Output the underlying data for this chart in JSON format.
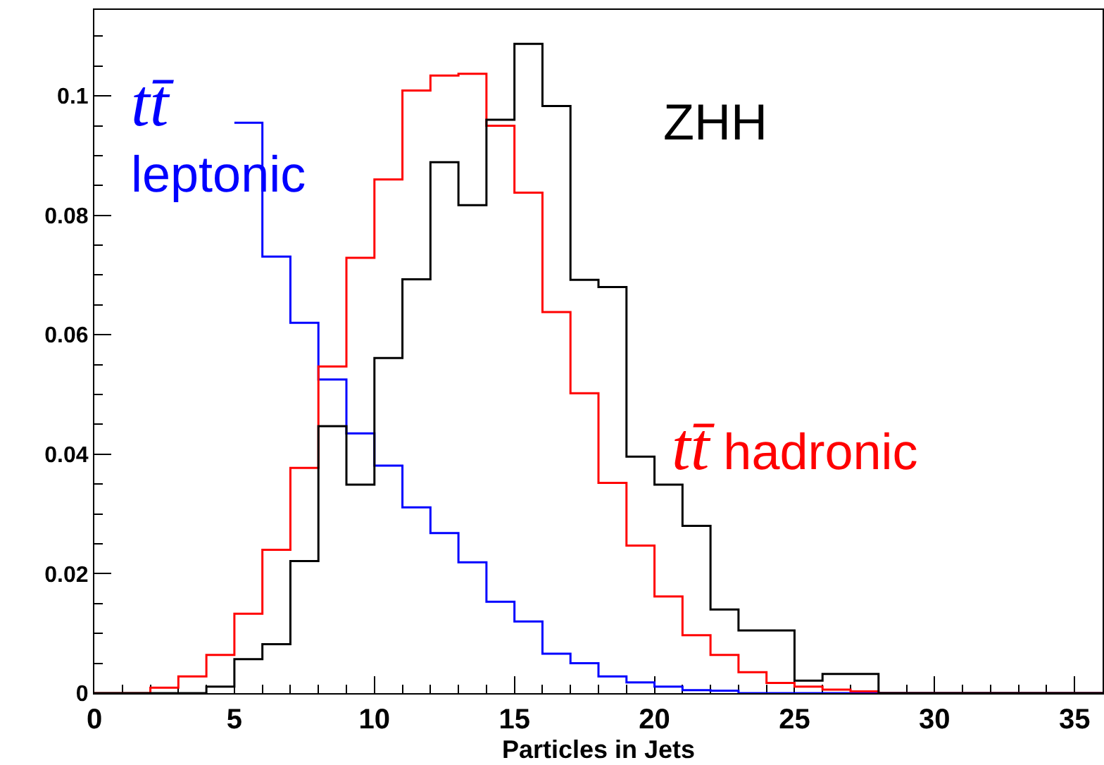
{
  "chart_data": {
    "type": "histogram",
    "xlabel": "Particles in Jets",
    "bins": [
      0,
      1,
      2,
      3,
      4,
      5,
      6,
      7,
      8,
      9,
      10,
      11,
      12,
      13,
      14,
      15,
      16,
      17,
      18,
      19,
      20,
      21,
      22,
      23,
      24,
      25,
      26,
      27,
      28,
      29,
      30,
      31,
      32,
      33,
      34,
      35,
      36
    ],
    "series": [
      {
        "name": "tt̄ leptonic",
        "color": "#0000ff",
        "bins": [
          5,
          6,
          7,
          8,
          9,
          10,
          11,
          12,
          13,
          14,
          15,
          16,
          17,
          18,
          19,
          20,
          21,
          22,
          23,
          24,
          25,
          26,
          27,
          28,
          29,
          30,
          31,
          32,
          33,
          34,
          35,
          36
        ],
        "values": [
          0.0955,
          0.0731,
          0.062,
          0.0525,
          0.0435,
          0.0381,
          0.0311,
          0.0268,
          0.0219,
          0.0153,
          0.012,
          0.0066,
          0.005,
          0.0028,
          0.0018,
          0.0011,
          0.0005,
          0.0004,
          0,
          0,
          0,
          0,
          0,
          0,
          0,
          0,
          0,
          0,
          0,
          0,
          0
        ]
      },
      {
        "name": "tt̄ hadronic",
        "color": "#ff0000",
        "values": [
          0,
          0,
          0.0009,
          0.0028,
          0.0064,
          0.0133,
          0.024,
          0.0377,
          0.0547,
          0.0729,
          0.086,
          0.1009,
          0.1034,
          0.1037,
          0.095,
          0.0838,
          0.0638,
          0.0502,
          0.0352,
          0.0247,
          0.0162,
          0.0097,
          0.0064,
          0.0035,
          0.0017,
          0.0011,
          0.0006,
          0.0003,
          0,
          0,
          0,
          0,
          0,
          0,
          0,
          0
        ]
      },
      {
        "name": "ZHH",
        "color": "#000000",
        "values": [
          0,
          0,
          0,
          0,
          0.0011,
          0.0057,
          0.0082,
          0.0221,
          0.0447,
          0.0349,
          0.0561,
          0.0693,
          0.0889,
          0.0817,
          0.096,
          0.1087,
          0.0983,
          0.0692,
          0.068,
          0.0396,
          0.0349,
          0.028,
          0.014,
          0.0105,
          0.0105,
          0.0021,
          0.0032,
          0.0032,
          0,
          0,
          0,
          0,
          0,
          0,
          0,
          0
        ]
      }
    ],
    "xlim": [
      0,
      36
    ],
    "xticks": [
      0,
      5,
      10,
      15,
      20,
      25,
      30,
      35
    ],
    "ylim": [
      0,
      0.1144
    ],
    "yticks": [
      0,
      0.02,
      0.04,
      0.06,
      0.08,
      0.1
    ]
  }
}
